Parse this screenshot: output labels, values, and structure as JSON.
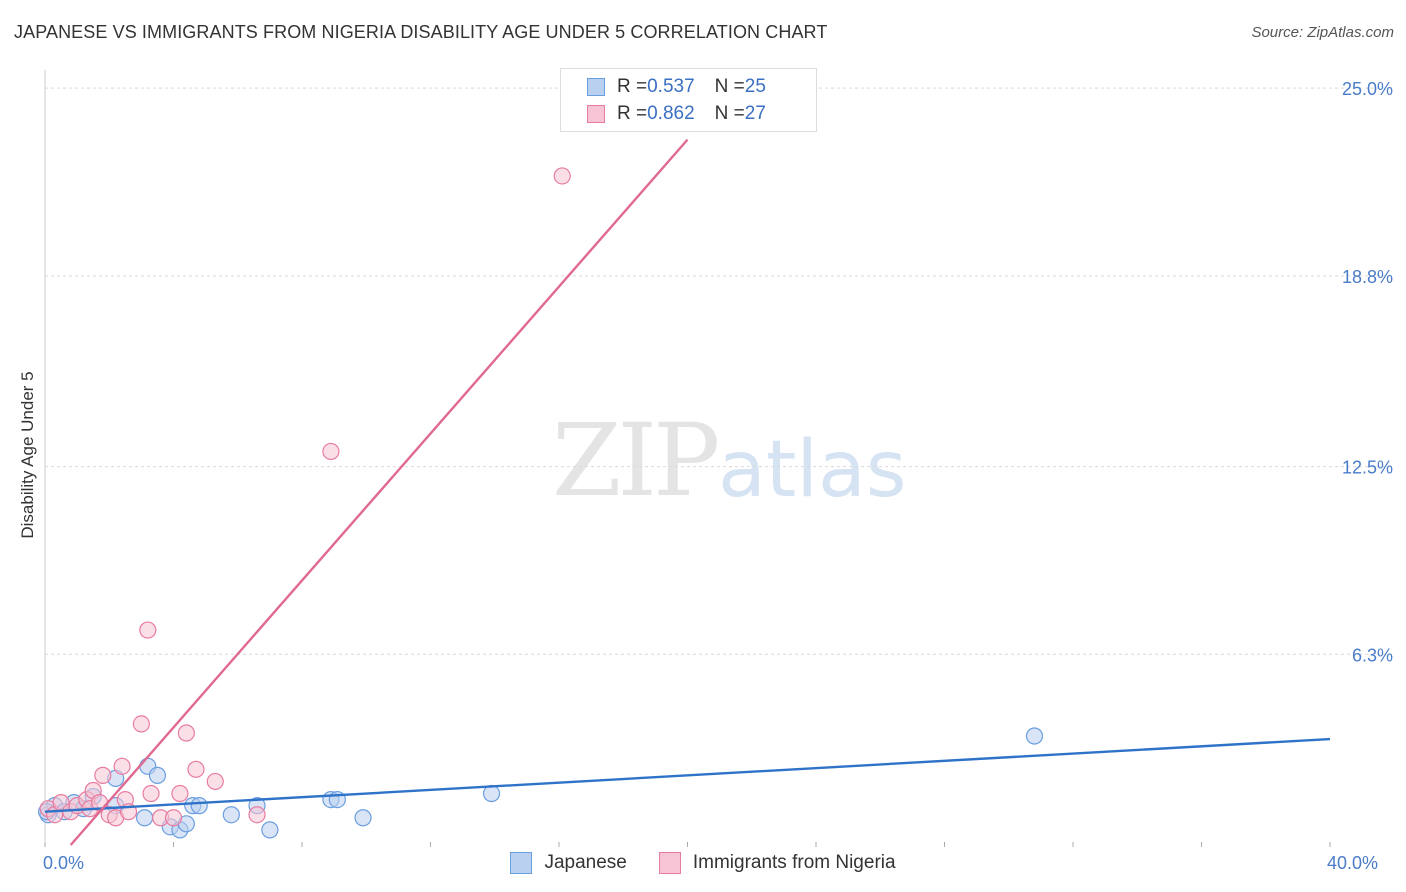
{
  "title": "JAPANESE VS IMMIGRANTS FROM NIGERIA DISABILITY AGE UNDER 5 CORRELATION CHART",
  "source": "Source: ZipAtlas.com",
  "watermark": {
    "zip": "ZIP",
    "atlas": "atlas"
  },
  "colors": {
    "blue": "#6a9ee0",
    "blue_fill": "#b9d0f1",
    "pink": "#e87ca0",
    "pink_fill": "#f6c4d4",
    "blue_line": "#2f73c9",
    "pink_line": "#e0698f",
    "grid": "#d9d9d9"
  },
  "legend": {
    "rows": [
      {
        "r_label": "R = ",
        "r_value": "0.537",
        "n_label": "N = ",
        "n_value": "25"
      },
      {
        "r_label": "R = ",
        "r_value": "0.862",
        "n_label": "N = ",
        "n_value": "27"
      }
    ]
  },
  "chart_data": {
    "type": "scatter",
    "title": "JAPANESE VS IMMIGRANTS FROM NIGERIA DISABILITY AGE UNDER 5 CORRELATION CHART",
    "xlabel": "",
    "ylabel": "Disability Age Under 5",
    "xlim": [
      0,
      40
    ],
    "ylim": [
      0,
      25.6
    ],
    "y_ticks": [
      {
        "value": 6.3,
        "label": "6.3%"
      },
      {
        "value": 12.5,
        "label": "12.5%"
      },
      {
        "value": 18.8,
        "label": "18.8%"
      },
      {
        "value": 25.0,
        "label": "25.0%"
      }
    ],
    "x_tick_labels": [
      {
        "value": 0,
        "label": "0.0%"
      },
      {
        "value": 40,
        "label": "40.0%"
      }
    ],
    "series": [
      {
        "name": "Japanese",
        "r": 0.537,
        "n": 25,
        "points": [
          {
            "x": 0.1,
            "y": 1.0
          },
          {
            "x": 0.3,
            "y": 1.3
          },
          {
            "x": 0.6,
            "y": 1.1
          },
          {
            "x": 0.9,
            "y": 1.4
          },
          {
            "x": 1.2,
            "y": 1.2
          },
          {
            "x": 1.5,
            "y": 1.6
          },
          {
            "x": 2.2,
            "y": 1.3
          },
          {
            "x": 2.2,
            "y": 2.2
          },
          {
            "x": 3.1,
            "y": 0.9
          },
          {
            "x": 3.2,
            "y": 2.6
          },
          {
            "x": 3.5,
            "y": 2.3
          },
          {
            "x": 3.9,
            "y": 0.6
          },
          {
            "x": 4.2,
            "y": 0.5
          },
          {
            "x": 4.4,
            "y": 0.7
          },
          {
            "x": 4.6,
            "y": 1.3
          },
          {
            "x": 4.8,
            "y": 1.3
          },
          {
            "x": 5.8,
            "y": 1.0
          },
          {
            "x": 6.6,
            "y": 1.3
          },
          {
            "x": 7.0,
            "y": 0.5
          },
          {
            "x": 8.9,
            "y": 1.5
          },
          {
            "x": 9.1,
            "y": 1.5
          },
          {
            "x": 9.9,
            "y": 0.9
          },
          {
            "x": 13.9,
            "y": 1.7
          },
          {
            "x": 30.8,
            "y": 3.6
          },
          {
            "x": 0.05,
            "y": 1.1
          }
        ],
        "trendline": {
          "x0": 0,
          "y0": 1.1,
          "x1": 40,
          "y1": 3.5
        }
      },
      {
        "name": "Immigrants from Nigeria",
        "r": 0.862,
        "n": 27,
        "points": [
          {
            "x": 0.1,
            "y": 1.2
          },
          {
            "x": 0.3,
            "y": 1.0
          },
          {
            "x": 0.5,
            "y": 1.4
          },
          {
            "x": 0.8,
            "y": 1.1
          },
          {
            "x": 1.0,
            "y": 1.3
          },
          {
            "x": 1.3,
            "y": 1.5
          },
          {
            "x": 1.4,
            "y": 1.2
          },
          {
            "x": 1.5,
            "y": 1.8
          },
          {
            "x": 1.7,
            "y": 1.4
          },
          {
            "x": 1.8,
            "y": 2.3
          },
          {
            "x": 2.0,
            "y": 1.0
          },
          {
            "x": 2.2,
            "y": 0.9
          },
          {
            "x": 2.4,
            "y": 2.6
          },
          {
            "x": 2.5,
            "y": 1.5
          },
          {
            "x": 2.6,
            "y": 1.1
          },
          {
            "x": 3.0,
            "y": 4.0
          },
          {
            "x": 3.2,
            "y": 7.1
          },
          {
            "x": 3.3,
            "y": 1.7
          },
          {
            "x": 3.6,
            "y": 0.9
          },
          {
            "x": 4.0,
            "y": 0.9
          },
          {
            "x": 4.2,
            "y": 1.7
          },
          {
            "x": 4.4,
            "y": 3.7
          },
          {
            "x": 4.7,
            "y": 2.5
          },
          {
            "x": 5.3,
            "y": 2.1
          },
          {
            "x": 6.6,
            "y": 1.0
          },
          {
            "x": 8.9,
            "y": 13.0
          },
          {
            "x": 16.1,
            "y": 22.1
          }
        ],
        "trendline": {
          "x0": 0.8,
          "y0": 0.0,
          "x1": 20.0,
          "y1": 23.3
        }
      }
    ]
  }
}
